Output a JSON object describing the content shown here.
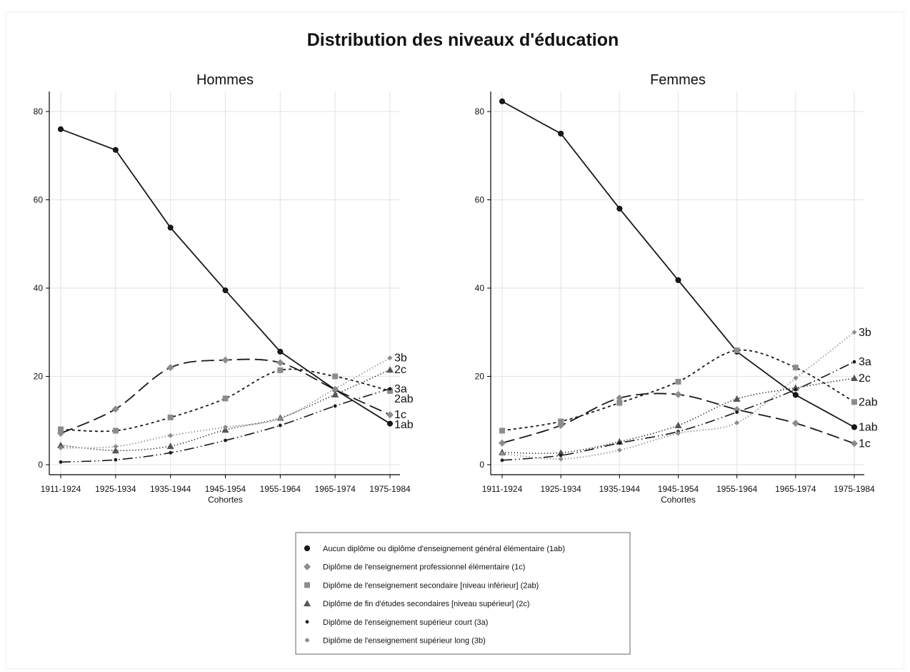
{
  "title": "Distribution des niveaux d'éducation",
  "legend": [
    {
      "key": "1ab",
      "label": "Aucun diplôme ou diplôme d'enseignement général élémentaire (1ab)"
    },
    {
      "key": "1c",
      "label": "Diplôme de l'enseignement professionnel élémentaire (1c)"
    },
    {
      "key": "2ab",
      "label": "Diplôme de l'enseignement secondaire [niveau inférieur] (2ab)"
    },
    {
      "key": "2c",
      "label": "Diplôme de fin d'études secondaires [niveau supérieur] (2c)"
    },
    {
      "key": "3a",
      "label": "Diplôme de l'enseignement supérieur court (3a)"
    },
    {
      "key": "3b",
      "label": "Diplôme de l'enseignement supérieur long (3b)"
    }
  ],
  "colors": {
    "black": "#1a1a1a",
    "gray": "#8c8c8c",
    "darkgray": "#555555",
    "grid": "#e6e6e6"
  },
  "chart_data": [
    {
      "type": "line",
      "title": "Hommes",
      "xlabel": "Cohortes",
      "ylabel": "",
      "ylim": [
        0,
        85
      ],
      "yticks": [
        0,
        20,
        40,
        60,
        80
      ],
      "grid": true,
      "categories": [
        "1911-1924",
        "1925-1934",
        "1935-1944",
        "1945-1954",
        "1955-1964",
        "1965-1974",
        "1975-1984"
      ],
      "series": [
        {
          "name": "1ab",
          "values": [
            76,
            71.3,
            53.7,
            39.5,
            25.6,
            17,
            9.3
          ]
        },
        {
          "name": "1c",
          "values": [
            7.1,
            12.6,
            22,
            23.7,
            23.1,
            17,
            11.3
          ]
        },
        {
          "name": "2ab",
          "values": [
            8,
            7.7,
            10.7,
            15,
            21.4,
            20,
            16.7
          ]
        },
        {
          "name": "2c",
          "values": [
            4.4,
            3.2,
            4.2,
            7.9,
            10.6,
            15.9,
            21.5
          ]
        },
        {
          "name": "3a",
          "values": [
            0.6,
            1.1,
            2.7,
            5.5,
            8.9,
            13.3,
            17.2
          ]
        },
        {
          "name": "3b",
          "values": [
            3.8,
            4.1,
            6.6,
            8.5,
            10.4,
            17.2,
            24.2
          ]
        }
      ]
    },
    {
      "type": "line",
      "title": "Femmes",
      "xlabel": "Cohortes",
      "ylabel": "",
      "ylim": [
        0,
        85
      ],
      "yticks": [
        0,
        20,
        40,
        60,
        80
      ],
      "grid": true,
      "categories": [
        "1911-1924",
        "1925-1934",
        "1935-1944",
        "1945-1954",
        "1955-1964",
        "1965-1974",
        "1975-1984"
      ],
      "series": [
        {
          "name": "1ab",
          "values": [
            82.3,
            75,
            58,
            41.8,
            25.6,
            15.8,
            8.5
          ]
        },
        {
          "name": "1c",
          "values": [
            4.9,
            8.9,
            15.1,
            15.9,
            12.5,
            9.4,
            4.8
          ]
        },
        {
          "name": "2ab",
          "values": [
            7.7,
            9.8,
            14,
            18.8,
            25.9,
            22,
            14.2
          ]
        },
        {
          "name": "2c",
          "values": [
            2.8,
            2.7,
            5.2,
            8.9,
            14.9,
            17.4,
            19.6
          ]
        },
        {
          "name": "3a",
          "values": [
            1,
            2.1,
            4.9,
            7.5,
            11.9,
            17,
            23.3
          ]
        },
        {
          "name": "3b",
          "values": [
            2.5,
            1.3,
            3.3,
            7.1,
            9.5,
            19.6,
            30
          ]
        }
      ]
    }
  ]
}
